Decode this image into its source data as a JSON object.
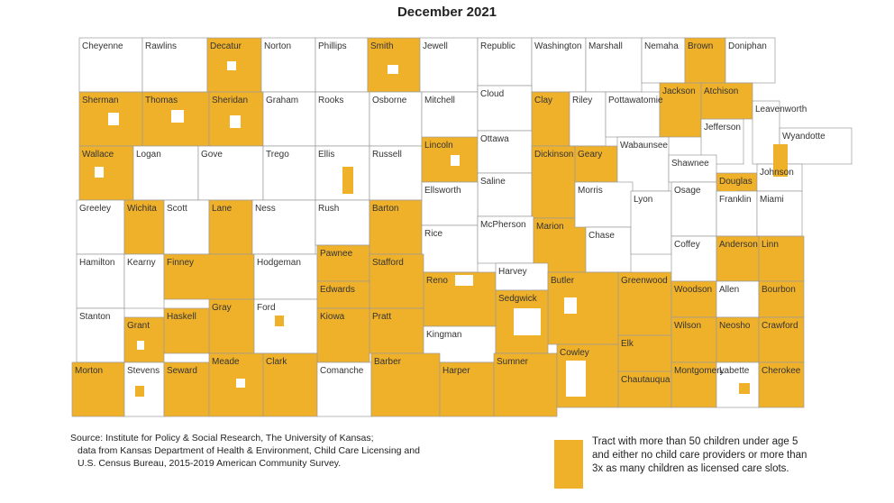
{
  "title": "December 2021",
  "colors": {
    "highlight": "#F0B12A",
    "none": "#FFFFFF",
    "border": "#9A9A9A"
  },
  "counties": [
    {
      "name": "Cheyenne",
      "hl": false
    },
    {
      "name": "Rawlins",
      "hl": false
    },
    {
      "name": "Decatur",
      "hl": true
    },
    {
      "name": "Norton",
      "hl": false
    },
    {
      "name": "Phillips",
      "hl": false
    },
    {
      "name": "Smith",
      "hl": true
    },
    {
      "name": "Jewell",
      "hl": false
    },
    {
      "name": "Republic",
      "hl": false
    },
    {
      "name": "Washington",
      "hl": false
    },
    {
      "name": "Marshall",
      "hl": false
    },
    {
      "name": "Nemaha",
      "hl": false
    },
    {
      "name": "Brown",
      "hl": true
    },
    {
      "name": "Doniphan",
      "hl": false
    },
    {
      "name": "Sherman",
      "hl": true
    },
    {
      "name": "Thomas",
      "hl": true
    },
    {
      "name": "Sheridan",
      "hl": true
    },
    {
      "name": "Graham",
      "hl": false
    },
    {
      "name": "Rooks",
      "hl": false
    },
    {
      "name": "Osborne",
      "hl": false
    },
    {
      "name": "Mitchell",
      "hl": false
    },
    {
      "name": "Cloud",
      "hl": false
    },
    {
      "name": "Clay",
      "hl": true
    },
    {
      "name": "Riley",
      "hl": false
    },
    {
      "name": "Pottawatomie",
      "hl": false
    },
    {
      "name": "Jackson",
      "hl": true
    },
    {
      "name": "Jefferson",
      "hl": false
    },
    {
      "name": "Atchison",
      "hl": true
    },
    {
      "name": "Leavenworth",
      "hl": false
    },
    {
      "name": "Wyandotte",
      "hl": false
    },
    {
      "name": "Wallace",
      "hl": true
    },
    {
      "name": "Logan",
      "hl": false
    },
    {
      "name": "Gove",
      "hl": false
    },
    {
      "name": "Trego",
      "hl": false
    },
    {
      "name": "Ellis",
      "hl": false
    },
    {
      "name": "Russell",
      "hl": false
    },
    {
      "name": "Lincoln",
      "hl": true
    },
    {
      "name": "Ottawa",
      "hl": false
    },
    {
      "name": "Saline",
      "hl": false
    },
    {
      "name": "Dickinson",
      "hl": true
    },
    {
      "name": "Geary",
      "hl": true
    },
    {
      "name": "Wabaunsee",
      "hl": false
    },
    {
      "name": "Shawnee",
      "hl": false
    },
    {
      "name": "Douglas",
      "hl": true
    },
    {
      "name": "Johnson",
      "hl": false
    },
    {
      "name": "Greeley",
      "hl": false
    },
    {
      "name": "Wichita",
      "hl": true
    },
    {
      "name": "Scott",
      "hl": false
    },
    {
      "name": "Lane",
      "hl": true
    },
    {
      "name": "Ness",
      "hl": false
    },
    {
      "name": "Rush",
      "hl": false
    },
    {
      "name": "Barton",
      "hl": true
    },
    {
      "name": "Ellsworth",
      "hl": false
    },
    {
      "name": "Rice",
      "hl": false
    },
    {
      "name": "McPherson",
      "hl": false
    },
    {
      "name": "Marion",
      "hl": true
    },
    {
      "name": "Morris",
      "hl": false
    },
    {
      "name": "Chase",
      "hl": false
    },
    {
      "name": "Lyon",
      "hl": false
    },
    {
      "name": "Osage",
      "hl": false
    },
    {
      "name": "Franklin",
      "hl": false
    },
    {
      "name": "Miami",
      "hl": false
    },
    {
      "name": "Hamilton",
      "hl": false
    },
    {
      "name": "Kearny",
      "hl": false
    },
    {
      "name": "Finney",
      "hl": true
    },
    {
      "name": "Hodgeman",
      "hl": false
    },
    {
      "name": "Pawnee",
      "hl": true
    },
    {
      "name": "Stafford",
      "hl": true
    },
    {
      "name": "Reno",
      "hl": true
    },
    {
      "name": "Harvey",
      "hl": false
    },
    {
      "name": "Butler",
      "hl": true
    },
    {
      "name": "Greenwood",
      "hl": true
    },
    {
      "name": "Coffey",
      "hl": false
    },
    {
      "name": "Anderson",
      "hl": true
    },
    {
      "name": "Linn",
      "hl": true
    },
    {
      "name": "Gray",
      "hl": true
    },
    {
      "name": "Ford",
      "hl": false
    },
    {
      "name": "Edwards",
      "hl": true
    },
    {
      "name": "Pratt",
      "hl": true
    },
    {
      "name": "Kingman",
      "hl": false
    },
    {
      "name": "Sedgwick",
      "hl": true
    },
    {
      "name": "Woodson",
      "hl": true
    },
    {
      "name": "Allen",
      "hl": false
    },
    {
      "name": "Bourbon",
      "hl": true
    },
    {
      "name": "Stanton",
      "hl": false
    },
    {
      "name": "Grant",
      "hl": true
    },
    {
      "name": "Haskell",
      "hl": true
    },
    {
      "name": "Kiowa",
      "hl": true
    },
    {
      "name": "Wilson",
      "hl": true
    },
    {
      "name": "Neosho",
      "hl": true
    },
    {
      "name": "Crawford",
      "hl": true
    },
    {
      "name": "Morton",
      "hl": true
    },
    {
      "name": "Stevens",
      "hl": false
    },
    {
      "name": "Seward",
      "hl": true
    },
    {
      "name": "Meade",
      "hl": true
    },
    {
      "name": "Clark",
      "hl": true
    },
    {
      "name": "Comanche",
      "hl": false
    },
    {
      "name": "Barber",
      "hl": true
    },
    {
      "name": "Harper",
      "hl": true
    },
    {
      "name": "Sumner",
      "hl": true
    },
    {
      "name": "Cowley",
      "hl": true
    },
    {
      "name": "Elk",
      "hl": true
    },
    {
      "name": "Chautauqua",
      "hl": true
    },
    {
      "name": "Montgomery",
      "hl": true
    },
    {
      "name": "Labette",
      "hl": false
    },
    {
      "name": "Cherokee",
      "hl": true
    }
  ],
  "source": [
    "Source: Institute for Policy & Social Research, The University of Kansas;",
    "data from Kansas Department of Health & Environment, Child Care Licensing and",
    "U.S. Census Bureau, 2015-2019 American Community Survey."
  ],
  "legend": {
    "label": "Tract with more than 50 children under age 5 and either no child care providers or more than 3x as many children as licensed care slots."
  }
}
